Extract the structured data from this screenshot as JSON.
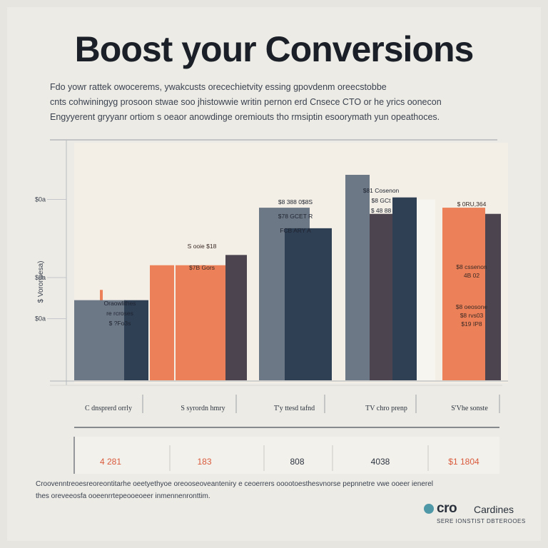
{
  "header": {
    "title": "Boost your Conversions",
    "intro_lines": [
      "Fdo yowr rattek owocerems, ywakcusts orecechietvity essing gpovdenm oreecstobbe",
      "cnts cohwiningyg prosoon stwae soo jhistowwie writin pernon erd Cnsece CTO or he yrics oonecon",
      "Engyyerent gryyanr ortiom s oeaor anowdinge oremiouts tho rmsiptin esoorymath yun opeathoces."
    ]
  },
  "chart_data": {
    "type": "bar",
    "title": "",
    "xlabel": "",
    "ylabel": "$ Voronsesa)",
    "ylim": [
      0,
      100
    ],
    "y_ticks": [
      {
        "value": 30,
        "label": "$0a"
      },
      {
        "value": 50,
        "label": "$0a"
      },
      {
        "value": 88,
        "label": "$0a"
      }
    ],
    "categories": [
      "C dnsprerd orrly",
      "S syrordn hmry",
      "T'y ttesd tafnd",
      "TV chro prenp",
      "S'Vhe sonste"
    ],
    "series": [
      {
        "name": "",
        "color": "#6d7887",
        "values": [
          39,
          53,
          84,
          100,
          0
        ]
      },
      {
        "name": "",
        "color": "#ec8058",
        "values": [
          44,
          56,
          0,
          0,
          84
        ]
      },
      {
        "name": "",
        "color": "#2f3f54",
        "values": [
          0,
          0,
          74,
          89,
          0
        ]
      },
      {
        "name": "",
        "color": "#4c4550",
        "values": [
          0,
          61,
          0,
          0,
          81
        ]
      }
    ],
    "annotations": [
      {
        "category": 0,
        "lines": [
          "Oraowlithes",
          "re rcroses",
          "$ ?Fo3s"
        ]
      },
      {
        "category": 1,
        "lines": [
          "S ooie $18",
          "$7B Gors"
        ]
      },
      {
        "category": 2,
        "lines": [
          "$8 388 0$8S",
          "$78 GCET R",
          "FCB ARY A"
        ]
      },
      {
        "category": 3,
        "lines": [
          "$81 Cosenon",
          "$8 GCt",
          "$ 48 88"
        ]
      },
      {
        "category": 4,
        "lines": [
          "$ 0RU,364",
          "$8 cssenon",
          "4B 02",
          "$8 oeosone",
          "$8 rvs03",
          "$19 IP8"
        ]
      }
    ],
    "totals": [
      "4 281",
      "183",
      "808",
      "4038",
      "$1 1804"
    ],
    "grid": false,
    "legend": "none"
  },
  "footer": {
    "lines": [
      "Croovenntreoesreoreontitarhe oeetyethyoe oreooseoveanteniry e ceoerrers ooootoesthesvnorse pepnnetre vwe ooeer ienerel",
      "thes oreveeosfa ooeenrrtepeooeoeer inmennenronttim."
    ]
  },
  "brand": {
    "name": "cro",
    "name2": "Cardines",
    "tagline": "SERE IONSTIST DBTEROOES"
  },
  "colors": {
    "accent": "#ec8058",
    "dark": "#2f3f54",
    "slate": "#6d7887"
  }
}
